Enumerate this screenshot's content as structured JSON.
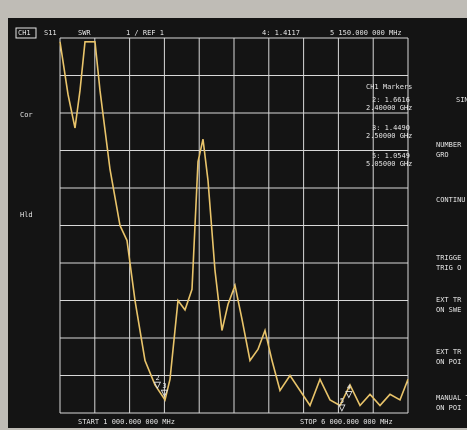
{
  "header": {
    "channel": "CH1",
    "parameter": "S11",
    "format": "SWR",
    "scale": "1 / REF 1",
    "marker_readout": "4: 1.4117",
    "marker_frequency": "5 150.000 000 MHz"
  },
  "status": [
    "Cor",
    "Hld"
  ],
  "marker_panel": {
    "title": "CH1 Markers",
    "entries": [
      {
        "readout": "2: 1.6616",
        "frequency": "2.40000 GHz"
      },
      {
        "readout": "3: 1.4490",
        "frequency": "2.50000 GHz"
      },
      {
        "readout": "5: 1.0549",
        "frequency": "5.05000 GHz"
      }
    ]
  },
  "footer": {
    "start": "START 1 000.000 000 MHz",
    "stop": "STOP 6 000.000 000 MHz"
  },
  "softkeys": [
    "SIN",
    "NUMBER",
    "GRO",
    "CONTINU",
    "TRIGGE",
    "TRIG O",
    "EXT TR",
    "ON SWE",
    "EXT TR",
    "ON POI",
    "MANUAL T",
    "ON POI"
  ],
  "chart_data": {
    "type": "line",
    "x": [
      1000,
      1115,
      1216,
      1287,
      1359,
      1503,
      1575,
      1718,
      1862,
      1963,
      2078,
      2221,
      2365,
      2509,
      2580,
      2695,
      2796,
      2897,
      2983,
      3055,
      3126,
      3227,
      3328,
      3414,
      3514,
      3615,
      3730,
      3845,
      3945,
      4046,
      4161,
      4305,
      4448,
      4592,
      4736,
      4879,
      5023,
      5167,
      5310,
      5454,
      5598,
      5741,
      5885,
      6000
    ],
    "series": [
      {
        "color": "#e9c46a",
        "values": [
          10.9,
          9.5,
          8.6,
          9.6,
          10.9,
          10.9,
          9.6,
          7.5,
          6.0,
          5.6,
          4.0,
          2.4,
          1.75,
          1.35,
          1.9,
          4.0,
          3.75,
          4.3,
          7.7,
          8.3,
          7.2,
          4.8,
          3.2,
          3.9,
          4.4,
          3.5,
          2.4,
          2.7,
          3.2,
          2.4,
          1.6,
          2.0,
          1.6,
          1.2,
          1.9,
          1.35,
          1.2,
          1.75,
          1.2,
          1.5,
          1.2,
          1.5,
          1.35,
          1.9
        ]
      }
    ],
    "markers": [
      {
        "label": "2",
        "x": 2400,
        "value": 1.6616
      },
      {
        "label": "3",
        "x": 2500,
        "value": 1.449
      },
      {
        "label": "4",
        "x": 5150,
        "value": 1.4117
      },
      {
        "label": "5",
        "x": 5050,
        "value": 1.0549
      }
    ],
    "xlim": [
      1000,
      6000
    ],
    "ylim": [
      1,
      11
    ],
    "xticks": [
      1000,
      1500,
      2000,
      2500,
      3000,
      3500,
      4000,
      4500,
      5000,
      5500,
      6000
    ],
    "yticks": [
      1,
      2,
      3,
      4,
      5,
      6,
      7,
      8,
      9,
      10,
      11
    ],
    "grid": true
  }
}
